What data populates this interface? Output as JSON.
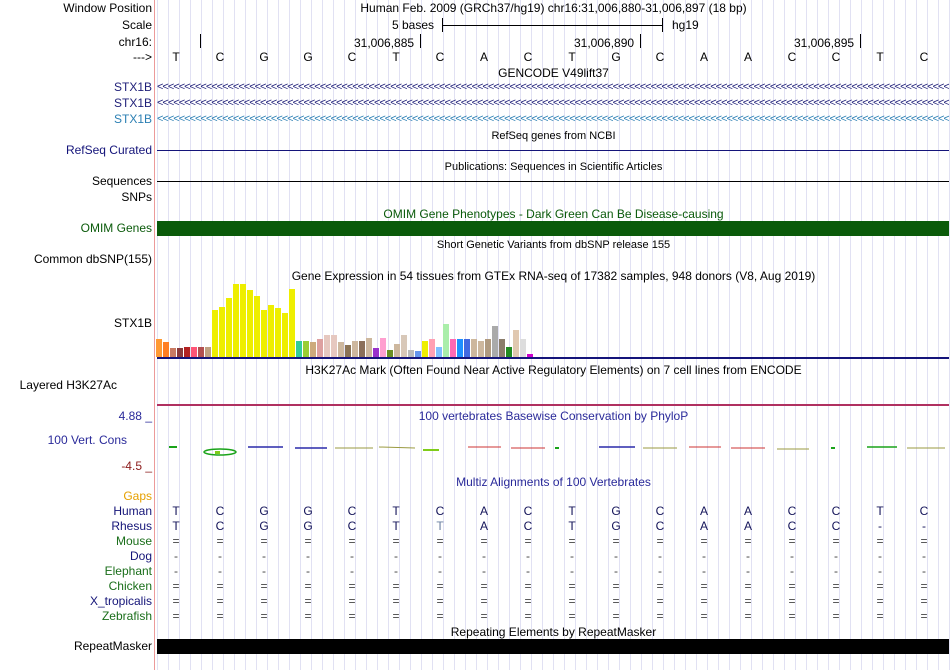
{
  "header": {
    "window_position_label": "Window Position",
    "scale_label": "Scale",
    "chrom_label": "chr16:",
    "arrow_label": "--->",
    "position_text": "Human Feb. 2009 (GRCh37/hg19)   chr16:31,006,880-31,006,897 (18 bp)",
    "scale_text": "5 bases",
    "assembly": "hg19",
    "ruler_ticks": [
      "31,006,885",
      "31,006,890",
      "31,006,895"
    ]
  },
  "sequence": [
    "T",
    "C",
    "G",
    "G",
    "C",
    "T",
    "C",
    "A",
    "C",
    "T",
    "G",
    "C",
    "A",
    "A",
    "C",
    "C",
    "T",
    "C"
  ],
  "tracks": {
    "gencode": {
      "title": "GENCODE V49lift37",
      "genes": [
        "STX1B",
        "STX1B",
        "STX1B"
      ],
      "colors": [
        "#1e1e78",
        "#1e1e78",
        "#2b7fb3"
      ]
    },
    "refseq": {
      "title": "RefSeq genes from NCBI",
      "label": "RefSeq Curated",
      "color": "#14147a"
    },
    "publications": {
      "title": "Publications: Sequences in Scientific Articles",
      "label": "Sequences"
    },
    "snps_label": "SNPs",
    "omim": {
      "title": "OMIM Gene Phenotypes - Dark Green Can Be Disease-causing",
      "label": "OMIM Genes",
      "color": "#0a5a0a"
    },
    "dbsnp": {
      "title": "Short Genetic Variants from dbSNP release 155",
      "label": "Common dbSNP(155)"
    },
    "gtex": {
      "title": "Gene Expression in 54 tissues from GTEx RNA-seq of 17382 samples, 948 donors (V8, Aug 2019)",
      "label": "STX1B",
      "bars": [
        {
          "v": 0.24,
          "c": "#ff9933"
        },
        {
          "v": 0.2,
          "c": "#ff7f24"
        },
        {
          "v": 0.12,
          "c": "#c97b63"
        },
        {
          "v": 0.12,
          "c": "#8b3a3a"
        },
        {
          "v": 0.14,
          "c": "#b22222"
        },
        {
          "v": 0.14,
          "c": "#ff5577"
        },
        {
          "v": 0.14,
          "c": "#b25050"
        },
        {
          "v": 0.14,
          "c": "#c0a080"
        },
        {
          "v": 0.64,
          "c": "#eeee00"
        },
        {
          "v": 0.68,
          "c": "#eeee00"
        },
        {
          "v": 0.8,
          "c": "#eeee00"
        },
        {
          "v": 0.99,
          "c": "#eeee00"
        },
        {
          "v": 0.99,
          "c": "#eeee00"
        },
        {
          "v": 0.9,
          "c": "#eeee00"
        },
        {
          "v": 0.82,
          "c": "#eeee00"
        },
        {
          "v": 0.64,
          "c": "#eeee00"
        },
        {
          "v": 0.7,
          "c": "#eeee00"
        },
        {
          "v": 0.66,
          "c": "#eeee00"
        },
        {
          "v": 0.6,
          "c": "#eeee00"
        },
        {
          "v": 0.92,
          "c": "#eeee00"
        },
        {
          "v": 0.22,
          "c": "#33cc99"
        },
        {
          "v": 0.22,
          "c": "#9acd32"
        },
        {
          "v": 0.2,
          "c": "#cdaa7d"
        },
        {
          "v": 0.24,
          "c": "#dda0a0"
        },
        {
          "v": 0.3,
          "c": "#e6c8c0"
        },
        {
          "v": 0.3,
          "c": "#e6c8c0"
        },
        {
          "v": 0.2,
          "c": "#cdb79e"
        },
        {
          "v": 0.16,
          "c": "#8b7355"
        },
        {
          "v": 0.22,
          "c": "#cdb79e"
        },
        {
          "v": 0.22,
          "c": "#8b6f5a"
        },
        {
          "v": 0.26,
          "c": "#cdb79e"
        },
        {
          "v": 0.12,
          "c": "#9932cc"
        },
        {
          "v": 0.26,
          "c": "#ff9fd0"
        },
        {
          "v": 0.1,
          "c": "#6b8e23"
        },
        {
          "v": 0.18,
          "c": "#cdb79e"
        },
        {
          "v": 0.3,
          "c": "#d8c8b8"
        },
        {
          "v": 0.1,
          "c": "#bbbbbb"
        },
        {
          "v": 0.08,
          "c": "#6495ed"
        },
        {
          "v": 0.22,
          "c": "#eeee00"
        },
        {
          "v": 0.24,
          "c": "#ffa0b4"
        },
        {
          "v": 0.14,
          "c": "#7fbfff"
        },
        {
          "v": 0.44,
          "c": "#aaeeaa"
        },
        {
          "v": 0.24,
          "c": "#ff69b4"
        },
        {
          "v": 0.24,
          "c": "#1e90ff"
        },
        {
          "v": 0.24,
          "c": "#4169e1"
        },
        {
          "v": 0.24,
          "c": "#cdb79e"
        },
        {
          "v": 0.22,
          "c": "#cdb79e"
        },
        {
          "v": 0.24,
          "c": "#b09a80"
        },
        {
          "v": 0.42,
          "c": "#aaaaaa"
        },
        {
          "v": 0.24,
          "c": "#8b7d6b"
        },
        {
          "v": 0.14,
          "c": "#228b22"
        },
        {
          "v": 0.36,
          "c": "#e0c8b0"
        },
        {
          "v": 0.24,
          "c": "#dddddd"
        },
        {
          "v": 0.04,
          "c": "#cc00cc"
        }
      ]
    },
    "h3k27ac": {
      "title": "H3K27Ac Mark (Often Found Near Active Regulatory Elements) on 7 cell lines from ENCODE",
      "label": "Layered H3K27Ac"
    },
    "cons": {
      "title": "100 vertebrates Basewise Conservation by PhyloP",
      "label": "100 Vert. Cons",
      "max": "4.88 _",
      "min": "-4.5 _"
    },
    "multiz": {
      "title": "Multiz Alignments of 100 Vertebrates",
      "gaps_label": "Gaps",
      "rows": [
        {
          "name": "Human",
          "color": "#141478",
          "seq": [
            "T",
            "C",
            "G",
            "G",
            "C",
            "T",
            "C",
            "A",
            "C",
            "T",
            "G",
            "C",
            "A",
            "A",
            "C",
            "C",
            "T",
            "C"
          ]
        },
        {
          "name": "Rhesus",
          "color": "#141478",
          "seq": [
            "T",
            "C",
            "G",
            "G",
            "C",
            "T",
            "T",
            "A",
            "C",
            "T",
            "G",
            "C",
            "A",
            "A",
            "C",
            "C",
            "-",
            "-"
          ]
        },
        {
          "name": "Mouse",
          "color": "#1a6e1a",
          "seq": [
            "=",
            "=",
            "=",
            "=",
            "=",
            "=",
            "=",
            "=",
            "=",
            "=",
            "=",
            "=",
            "=",
            "=",
            "=",
            "=",
            "=",
            "="
          ]
        },
        {
          "name": "Dog",
          "color": "#141478",
          "seq": [
            "-",
            "-",
            "-",
            "-",
            "-",
            "-",
            "-",
            "-",
            "-",
            "-",
            "-",
            "-",
            "-",
            "-",
            "-",
            "-",
            "-",
            "-"
          ]
        },
        {
          "name": "Elephant",
          "color": "#1a6e1a",
          "seq": [
            "-",
            "-",
            "-",
            "-",
            "-",
            "-",
            "-",
            "-",
            "-",
            "-",
            "-",
            "-",
            "-",
            "-",
            "-",
            "-",
            "-",
            "-"
          ]
        },
        {
          "name": "Chicken",
          "color": "#1a6e1a",
          "seq": [
            "=",
            "=",
            "=",
            "=",
            "=",
            "=",
            "=",
            "=",
            "=",
            "=",
            "=",
            "=",
            "=",
            "=",
            "=",
            "=",
            "=",
            "="
          ]
        },
        {
          "name": "X_tropicalis",
          "color": "#141478",
          "seq": [
            "=",
            "=",
            "=",
            "=",
            "=",
            "=",
            "=",
            "=",
            "=",
            "=",
            "=",
            "=",
            "=",
            "=",
            "=",
            "=",
            "=",
            "="
          ]
        },
        {
          "name": "Zebrafish",
          "color": "#1a6e1a",
          "seq": [
            "=",
            "=",
            "=",
            "=",
            "=",
            "=",
            "=",
            "=",
            "=",
            "=",
            "=",
            "=",
            "=",
            "=",
            "=",
            "=",
            "=",
            "="
          ]
        }
      ]
    },
    "repeatmasker": {
      "title": "Repeating Elements by RepeatMasker",
      "label": "RepeatMasker"
    }
  }
}
